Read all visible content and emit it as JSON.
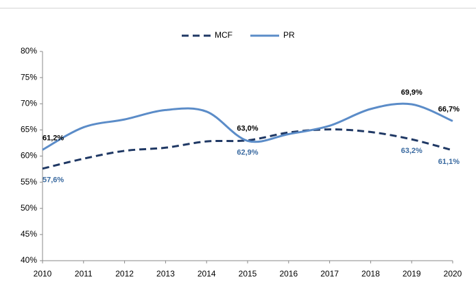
{
  "chart_data": {
    "type": "line",
    "x": [
      2010,
      2011,
      2012,
      2013,
      2014,
      2015,
      2016,
      2017,
      2018,
      2019,
      2020
    ],
    "xlim": [
      2010,
      2020
    ],
    "xticks": [
      2010,
      2011,
      2012,
      2013,
      2014,
      2015,
      2016,
      2017,
      2018,
      2019,
      2020
    ],
    "ylim": [
      40,
      80
    ],
    "yticks": [
      {
        "value": 40,
        "label": "40%"
      },
      {
        "value": 45,
        "label": "45%"
      },
      {
        "value": 50,
        "label": "50%"
      },
      {
        "value": 55,
        "label": "55%"
      },
      {
        "value": 60,
        "label": "60%"
      },
      {
        "value": 65,
        "label": "65%"
      },
      {
        "value": 70,
        "label": "70%"
      },
      {
        "value": 75,
        "label": "75%"
      },
      {
        "value": 80,
        "label": "80%"
      }
    ],
    "grid": false,
    "legend": "top",
    "series": [
      {
        "name": "MCF",
        "color": "#1f3864",
        "dash": true,
        "values": [
          57.6,
          59.5,
          61.0,
          61.6,
          62.8,
          63.0,
          64.5,
          65.1,
          64.6,
          63.2,
          61.1
        ],
        "value_labels": [
          "57,6%",
          null,
          null,
          null,
          null,
          "63,0%",
          null,
          null,
          null,
          "63,2%",
          "61,1%"
        ]
      },
      {
        "name": "PR",
        "color": "#5b8cc8",
        "dash": false,
        "values": [
          61.2,
          65.5,
          67.0,
          68.8,
          68.5,
          62.9,
          64.2,
          65.8,
          69.0,
          69.9,
          66.7
        ],
        "value_labels": [
          "61,2%",
          null,
          null,
          null,
          null,
          "62,9%",
          null,
          null,
          null,
          "69,9%",
          "66,7%"
        ]
      }
    ]
  }
}
